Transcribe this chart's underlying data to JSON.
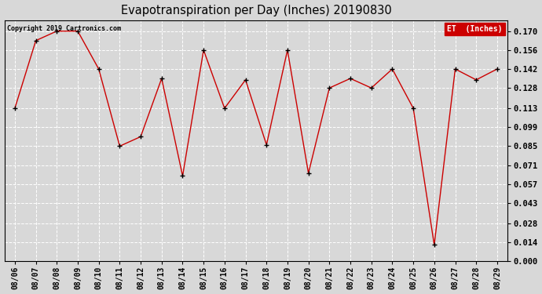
{
  "title": "Evapotranspiration per Day (Inches) 20190830",
  "copyright": "Copyright 2019 Cartronics.com",
  "legend_label": "ET  (Inches)",
  "legend_bg": "#cc0000",
  "legend_text_color": "#ffffff",
  "line_color": "#cc0000",
  "marker_color": "#000000",
  "background_color": "#d8d8d8",
  "grid_color": "#ffffff",
  "dates": [
    "08/06",
    "08/07",
    "08/08",
    "08/09",
    "08/10",
    "08/11",
    "08/12",
    "08/13",
    "08/14",
    "08/15",
    "08/16",
    "08/17",
    "08/18",
    "08/19",
    "08/20",
    "08/21",
    "08/22",
    "08/23",
    "08/24",
    "08/25",
    "08/26",
    "08/27",
    "08/28",
    "08/29"
  ],
  "values": [
    0.113,
    0.163,
    0.17,
    0.17,
    0.142,
    0.085,
    0.092,
    0.135,
    0.063,
    0.156,
    0.113,
    0.134,
    0.086,
    0.156,
    0.065,
    0.128,
    0.135,
    0.128,
    0.142,
    0.113,
    0.012,
    0.142,
    0.134,
    0.142
  ],
  "ylim": [
    0.0,
    0.178
  ],
  "yticks": [
    0.0,
    0.014,
    0.028,
    0.043,
    0.057,
    0.071,
    0.085,
    0.099,
    0.113,
    0.128,
    0.142,
    0.156,
    0.17
  ]
}
